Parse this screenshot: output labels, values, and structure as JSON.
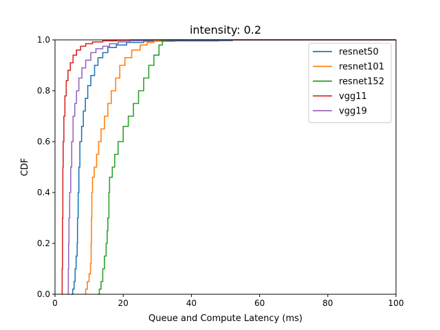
{
  "chart_data": {
    "type": "line",
    "title": "intensity: 0.2",
    "xlabel": "Queue and Compute Latency (ms)",
    "ylabel": "CDF",
    "xlim": [
      0,
      100
    ],
    "ylim": [
      0,
      1.0
    ],
    "xticks": [
      "0",
      "20",
      "40",
      "60",
      "80",
      "100"
    ],
    "yticks": [
      "0.0",
      "0.2",
      "0.4",
      "0.6",
      "0.8",
      "1.0"
    ],
    "grid": false,
    "legend_position": "top-right",
    "series": [
      {
        "name": "resnet50",
        "color": "#1f77b4",
        "points": [
          [
            4.8,
            0.0
          ],
          [
            5.2,
            0.02
          ],
          [
            5.6,
            0.05
          ],
          [
            5.9,
            0.1
          ],
          [
            6.2,
            0.15
          ],
          [
            6.5,
            0.2
          ],
          [
            6.6,
            0.3
          ],
          [
            6.8,
            0.4
          ],
          [
            7.0,
            0.5
          ],
          [
            7.3,
            0.6
          ],
          [
            7.8,
            0.66
          ],
          [
            8.3,
            0.72
          ],
          [
            8.9,
            0.77
          ],
          [
            9.6,
            0.82
          ],
          [
            10.5,
            0.86
          ],
          [
            11.6,
            0.9
          ],
          [
            12.6,
            0.93
          ],
          [
            14.0,
            0.95
          ],
          [
            15.5,
            0.97
          ],
          [
            18.0,
            0.98
          ],
          [
            21.0,
            0.99
          ],
          [
            26.0,
            0.995
          ],
          [
            35.0,
            0.996
          ],
          [
            48.0,
            0.997
          ],
          [
            52.0,
            1.0
          ]
        ]
      },
      {
        "name": "resnet101",
        "color": "#ff7f0e",
        "points": [
          [
            8.8,
            0.0
          ],
          [
            9.0,
            0.02
          ],
          [
            9.5,
            0.05
          ],
          [
            10.0,
            0.08
          ],
          [
            10.4,
            0.12
          ],
          [
            10.6,
            0.2
          ],
          [
            10.7,
            0.3
          ],
          [
            10.8,
            0.4
          ],
          [
            11.0,
            0.46
          ],
          [
            11.5,
            0.5
          ],
          [
            12.2,
            0.55
          ],
          [
            12.8,
            0.6
          ],
          [
            13.5,
            0.65
          ],
          [
            14.5,
            0.7
          ],
          [
            15.5,
            0.75
          ],
          [
            16.5,
            0.8
          ],
          [
            17.8,
            0.85
          ],
          [
            19.0,
            0.9
          ],
          [
            20.5,
            0.93
          ],
          [
            22.5,
            0.96
          ],
          [
            25.0,
            0.98
          ],
          [
            27.0,
            0.99
          ],
          [
            29.0,
            0.995
          ],
          [
            31.0,
            1.0
          ]
        ]
      },
      {
        "name": "resnet152",
        "color": "#2ca02c",
        "points": [
          [
            12.7,
            0.0
          ],
          [
            13.0,
            0.02
          ],
          [
            13.5,
            0.05
          ],
          [
            14.0,
            0.1
          ],
          [
            14.5,
            0.15
          ],
          [
            15.0,
            0.2
          ],
          [
            15.3,
            0.25
          ],
          [
            15.5,
            0.3
          ],
          [
            15.8,
            0.4
          ],
          [
            16.0,
            0.46
          ],
          [
            16.8,
            0.5
          ],
          [
            17.5,
            0.55
          ],
          [
            18.5,
            0.6
          ],
          [
            20.0,
            0.66
          ],
          [
            21.5,
            0.7
          ],
          [
            23.0,
            0.75
          ],
          [
            24.5,
            0.8
          ],
          [
            26.0,
            0.85
          ],
          [
            27.5,
            0.9
          ],
          [
            29.0,
            0.94
          ],
          [
            30.5,
            0.98
          ],
          [
            31.5,
            0.995
          ],
          [
            33.0,
            1.0
          ]
        ]
      },
      {
        "name": "vgg11",
        "color": "#d62728",
        "points": [
          [
            2.0,
            0.0
          ],
          [
            2.1,
            0.1
          ],
          [
            2.2,
            0.3
          ],
          [
            2.3,
            0.5
          ],
          [
            2.4,
            0.6
          ],
          [
            2.6,
            0.7
          ],
          [
            2.9,
            0.78
          ],
          [
            3.3,
            0.84
          ],
          [
            3.8,
            0.88
          ],
          [
            4.5,
            0.91
          ],
          [
            5.3,
            0.94
          ],
          [
            6.3,
            0.96
          ],
          [
            7.5,
            0.975
          ],
          [
            9.0,
            0.985
          ],
          [
            11.0,
            0.992
          ],
          [
            14.0,
            0.996
          ],
          [
            18.0,
            0.998
          ],
          [
            22.0,
            1.0
          ]
        ]
      },
      {
        "name": "vgg19",
        "color": "#9467bd",
        "points": [
          [
            3.8,
            0.0
          ],
          [
            3.9,
            0.1
          ],
          [
            4.0,
            0.2
          ],
          [
            4.1,
            0.3
          ],
          [
            4.3,
            0.4
          ],
          [
            4.6,
            0.5
          ],
          [
            4.9,
            0.6
          ],
          [
            5.3,
            0.7
          ],
          [
            5.8,
            0.75
          ],
          [
            6.3,
            0.8
          ],
          [
            7.0,
            0.85
          ],
          [
            7.9,
            0.89
          ],
          [
            9.0,
            0.92
          ],
          [
            10.5,
            0.95
          ],
          [
            12.0,
            0.965
          ],
          [
            14.0,
            0.975
          ],
          [
            16.0,
            0.985
          ],
          [
            18.5,
            0.992
          ],
          [
            22.0,
            0.997
          ],
          [
            26.0,
            1.0
          ]
        ]
      }
    ]
  }
}
